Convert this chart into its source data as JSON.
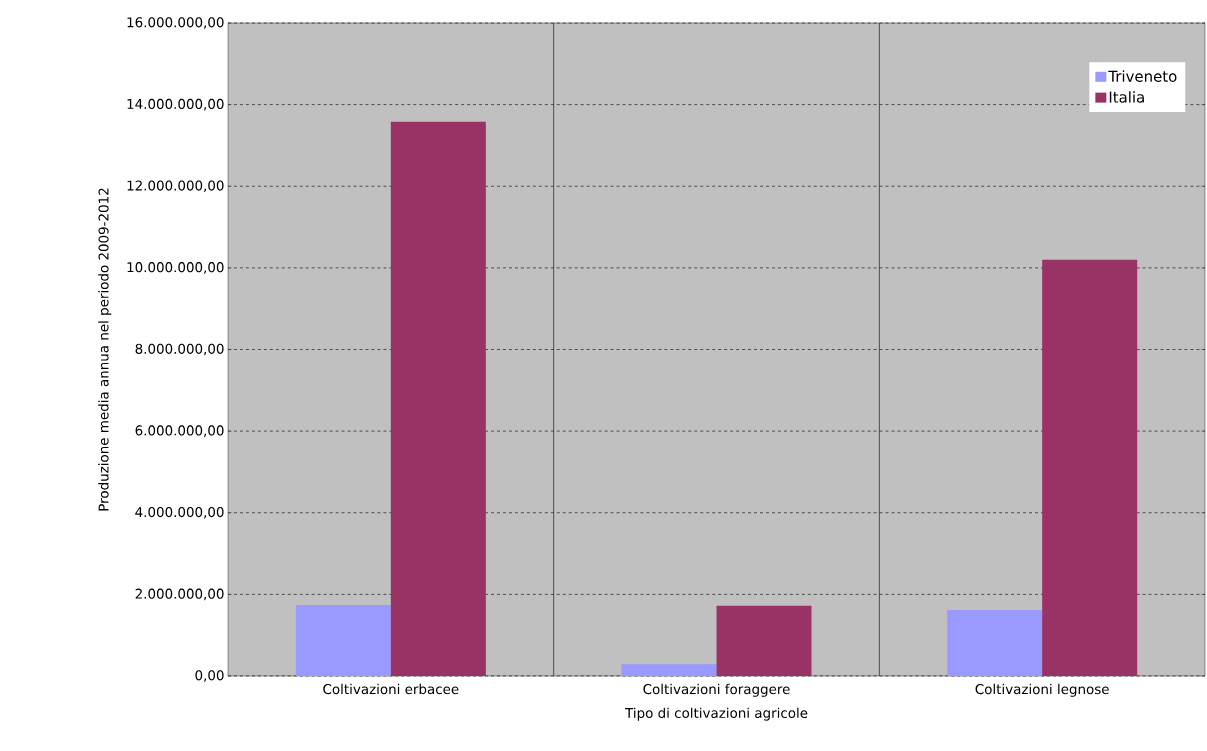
{
  "chart_data": {
    "type": "bar",
    "xlabel": "Tipo di coltivazioni agricole",
    "ylabel": "Produzione media annua nel periodo 2009-2012",
    "categories": [
      "Coltivazioni erbacee",
      "Coltivazioni foraggere",
      "Coltivazioni legnose"
    ],
    "series": [
      {
        "name": "Triveneto",
        "color": "#9999ff",
        "values": [
          1740000,
          290000,
          1620000
        ]
      },
      {
        "name": "Italia",
        "color": "#993366",
        "values": [
          13580000,
          1720000,
          10200000
        ]
      }
    ],
    "ylim": [
      0,
      16000000
    ],
    "yticks": [
      {
        "value": 0,
        "label": "0,00"
      },
      {
        "value": 2000000,
        "label": "2.000.000,00"
      },
      {
        "value": 4000000,
        "label": "4.000.000,00"
      },
      {
        "value": 6000000,
        "label": "6.000.000,00"
      },
      {
        "value": 8000000,
        "label": "8.000.000,00"
      },
      {
        "value": 10000000,
        "label": "10.000.000,00"
      },
      {
        "value": 12000000,
        "label": "12.000.000,00"
      },
      {
        "value": 14000000,
        "label": "14.000.000,00"
      },
      {
        "value": 16000000,
        "label": "16.000.000,00"
      }
    ],
    "grid": true,
    "legend": "top right"
  }
}
